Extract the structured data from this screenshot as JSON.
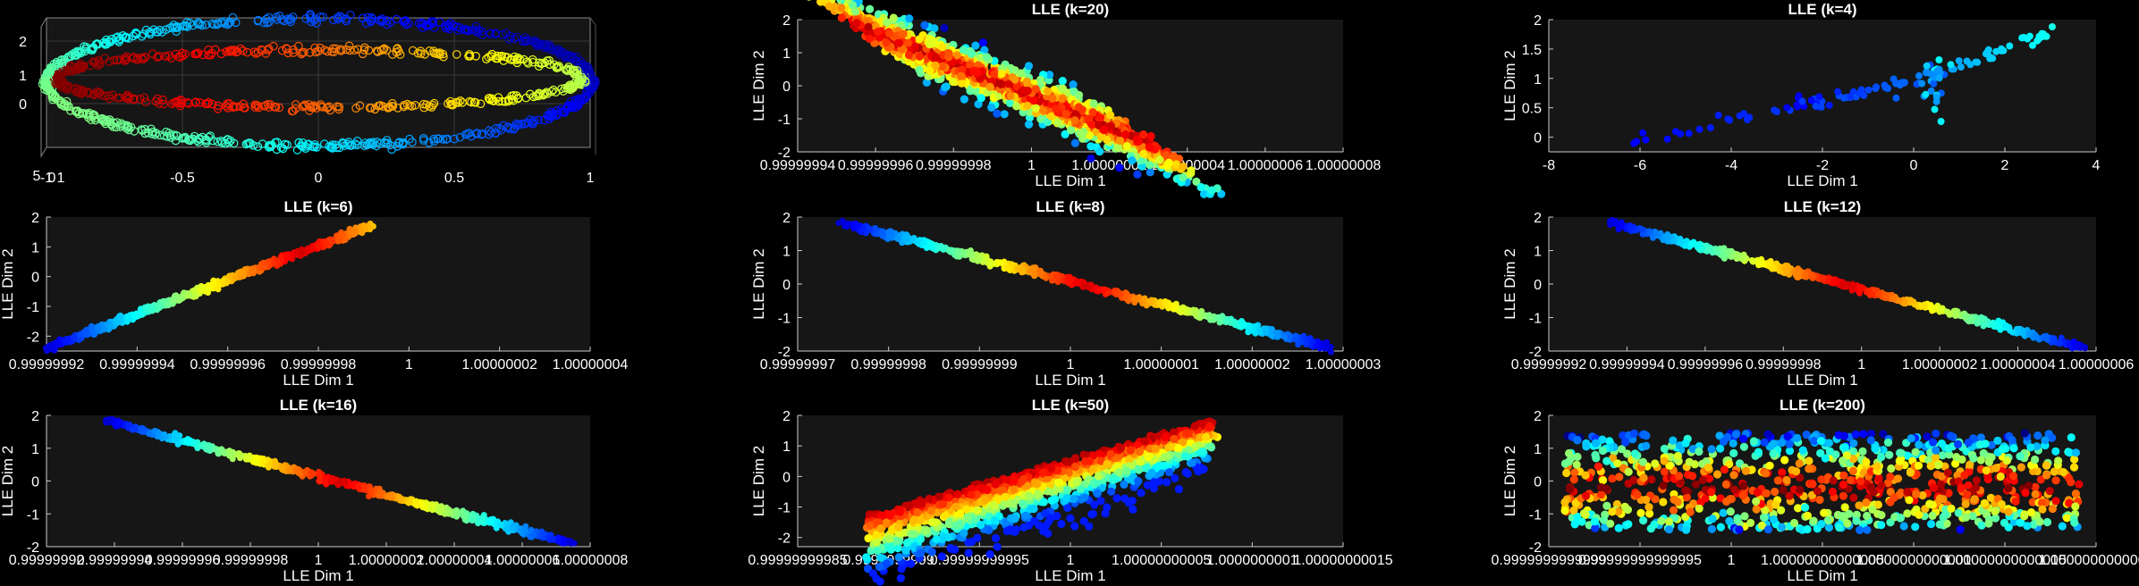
{
  "chart_data": [
    {
      "type": "scatter3d",
      "title": "",
      "xlabel": "",
      "ylabel": "",
      "xticks": [
        "-1",
        "-0.5",
        "0",
        "0.5",
        "1"
      ],
      "zticks": [
        "0",
        "1",
        "2"
      ],
      "extra_ticks": [
        "5",
        "0",
        "1"
      ],
      "xlim": [
        -1,
        1
      ],
      "zlim": [
        -0.5,
        2.5
      ],
      "description_colormap": "jet",
      "grid": true,
      "n_points": 1200
    },
    {
      "type": "scatter",
      "title": "LLE (k=20)",
      "xlabel": "LLE Dim 1",
      "ylabel": "LLE Dim 2",
      "xticks": [
        "0.99999994",
        "0.99999996",
        "0.99999998",
        "1",
        "1.00000002",
        "1.00000004",
        "1.00000006",
        "1.00000008"
      ],
      "yticks": [
        "-2",
        "-1",
        "0",
        "1",
        "2"
      ],
      "ylim": [
        -2,
        2
      ],
      "pattern": "band",
      "n_points": 1500
    },
    {
      "type": "scatter",
      "title": "LLE (k=4)",
      "xlabel": "LLE Dim 1",
      "ylabel": "LLE Dim 2",
      "xticks": [
        "-8",
        "-6",
        "-4",
        "-2",
        "0",
        "2",
        "4"
      ],
      "yticks": [
        "0",
        "0.5",
        "1",
        "1.5",
        "2"
      ],
      "xlim": [
        -8,
        4
      ],
      "ylim": [
        -0.25,
        2
      ],
      "pattern": "rays",
      "n_points": 130
    },
    {
      "type": "scatter",
      "title": "LLE (k=6)",
      "xlabel": "LLE Dim 1",
      "ylabel": "LLE Dim 2",
      "xticks": [
        "0.99999992",
        "0.99999994",
        "0.99999996",
        "0.99999998",
        "1",
        "1.00000002",
        "1.00000004"
      ],
      "yticks": [
        "-2",
        "-1",
        "0",
        "1",
        "2"
      ],
      "ylim": [
        -2.5,
        2
      ],
      "pattern": "line-up",
      "n_points": 700
    },
    {
      "type": "scatter",
      "title": "LLE (k=8)",
      "xlabel": "LLE Dim 1",
      "ylabel": "LLE Dim 2",
      "xticks": [
        "0.99999997",
        "0.99999998",
        "0.99999999",
        "1",
        "1.00000001",
        "1.00000002",
        "1.00000003"
      ],
      "yticks": [
        "-2",
        "-1",
        "0",
        "1",
        "2"
      ],
      "ylim": [
        -2,
        2
      ],
      "pattern": "line-down",
      "n_points": 700
    },
    {
      "type": "scatter",
      "title": "LLE (k=12)",
      "xlabel": "LLE Dim 1",
      "ylabel": "LLE Dim 2",
      "xticks": [
        "0.99999992",
        "0.99999994",
        "0.99999996",
        "0.99999998",
        "1",
        "1.00000002",
        "1.00000004",
        "1.00000006"
      ],
      "yticks": [
        "-2",
        "-1",
        "0",
        "1",
        "2"
      ],
      "ylim": [
        -2,
        2
      ],
      "pattern": "line-down",
      "n_points": 700
    },
    {
      "type": "scatter",
      "title": "LLE (k=16)",
      "xlabel": "LLE Dim 1",
      "ylabel": "LLE Dim 2",
      "xticks": [
        "0.99999992",
        "0.99999994",
        "0.99999996",
        "0.99999998",
        "1",
        "1.00000002",
        "1.00000004",
        "1.00000006",
        "1.00000008"
      ],
      "yticks": [
        "-2",
        "-1",
        "0",
        "1",
        "2"
      ],
      "ylim": [
        -2,
        2
      ],
      "pattern": "line-down",
      "n_points": 700
    },
    {
      "type": "scatter",
      "title": "LLE (k=50)",
      "xlabel": "LLE Dim 1",
      "ylabel": "LLE Dim 2",
      "xticks": [
        "0.99999999985",
        "0.9999999999",
        "0.99999999995",
        "1",
        "1.00000000005",
        "1.0000000001",
        "1.00000000015"
      ],
      "yticks": [
        "-2",
        "-1",
        "0",
        "1",
        "2"
      ],
      "ylim": [
        -2.3,
        2
      ],
      "pattern": "wedge",
      "n_points": 1300
    },
    {
      "type": "scatter",
      "title": "LLE (k=200)",
      "xlabel": "LLE Dim 1",
      "ylabel": "LLE Dim 2",
      "xticks": [
        "0.9999999999999",
        "0.99999999999995",
        "1",
        "1.00000000000005",
        "1.0000000000001",
        "1.00000000000015",
        "1.0000000000002"
      ],
      "yticks": [
        "-2",
        "-1",
        "0",
        "1",
        "2"
      ],
      "ylim": [
        -2,
        2
      ],
      "pattern": "noise",
      "n_points": 900
    }
  ]
}
